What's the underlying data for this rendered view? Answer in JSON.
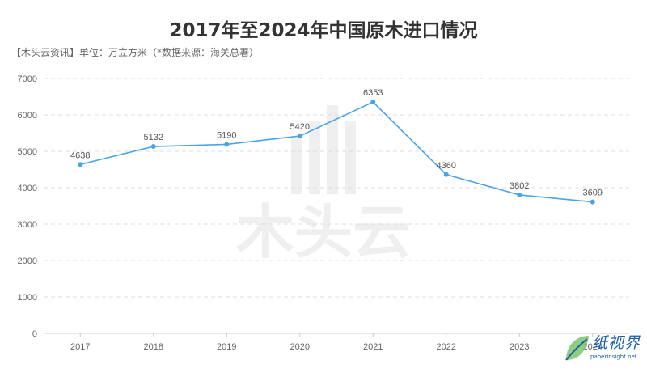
{
  "chart_data": {
    "type": "line",
    "title": "2017年至2024年中国原木进口情况",
    "subtitle": "【木头云资讯】单位：万立方米（*数据来源：海关总署）",
    "x": [
      "2017",
      "2018",
      "2019",
      "2020",
      "2021",
      "2022",
      "2023",
      "2024"
    ],
    "series": [
      {
        "values": [
          4638,
          5132,
          5190,
          5420,
          6353,
          4360,
          3802,
          3609
        ]
      }
    ],
    "data_labels": [
      "4638",
      "5132",
      "5190",
      "5420",
      "6353",
      "4360",
      "3802",
      "3609"
    ],
    "y_ticks": [
      "0",
      "1000",
      "2000",
      "3000",
      "4000",
      "5000",
      "6000",
      "7000"
    ],
    "ylim": [
      0,
      7000
    ],
    "grid": true,
    "line_color": "#4aa3e8"
  },
  "watermark": {
    "center_text": "木头云",
    "corner_text": "纸视界",
    "corner_sub": "paperinsight.net"
  }
}
